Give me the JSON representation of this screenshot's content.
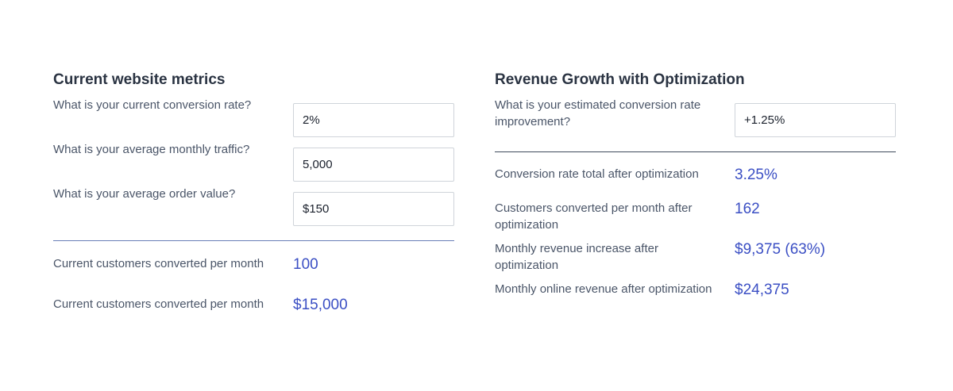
{
  "current": {
    "title": "Current website metrics",
    "fields": [
      {
        "label": "What is your current conversion rate?",
        "value": "2%"
      },
      {
        "label": "What is your average monthly traffic?",
        "value": "5,000"
      },
      {
        "label": "What is your average order value?",
        "value": "$150"
      }
    ],
    "results": [
      {
        "label": "Current customers converted per month",
        "value": "100"
      },
      {
        "label": "Current customers converted per month",
        "value": "$15,000"
      }
    ]
  },
  "growth": {
    "title": "Revenue Growth with Optimization",
    "fields": [
      {
        "label": "What is your estimated conversion rate improvement?",
        "value": "+1.25%"
      }
    ],
    "results": [
      {
        "label": "Conversion rate total after optimization",
        "value": "3.25%"
      },
      {
        "label": "Customers converted per month after optimization",
        "value": "162"
      },
      {
        "label": "Monthly revenue increase after optimization",
        "value": "$9,375 (63%)"
      },
      {
        "label": "Monthly online revenue after optimization",
        "value": "$24,375"
      }
    ]
  },
  "colors": {
    "accent": "#3b4fc4",
    "heading": "#2a3342",
    "label": "#4a5568",
    "divider_left": "#6a7fb8",
    "divider_right": "#3e4a5c",
    "input_border": "#cfd4da"
  }
}
